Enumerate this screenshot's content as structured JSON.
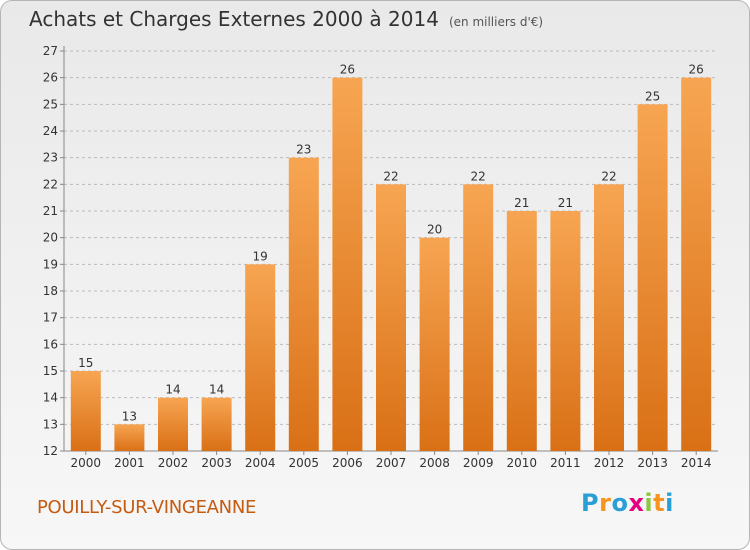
{
  "title": "Achats et Charges Externes 2000 à 2014",
  "subtitle": "(en milliers d'€)",
  "city": "POUILLY-SUR-VINGEANNE",
  "logo": {
    "letters": [
      "P",
      "r",
      "o",
      "x",
      "i",
      "t",
      "i"
    ],
    "colors": [
      "#2a9fd6",
      "#f7941d",
      "#2a9fd6",
      "#e5007e",
      "#8dc63f",
      "#f7941d",
      "#2a9fd6"
    ]
  },
  "colors": {
    "bar_top": "#f7a552",
    "bar_bottom": "#d97016",
    "grid": "#bbbbbb"
  },
  "chart_data": {
    "type": "bar",
    "title": "Achats et Charges Externes 2000 à 2014",
    "categories": [
      "2000",
      "2001",
      "2002",
      "2003",
      "2004",
      "2005",
      "2006",
      "2007",
      "2008",
      "2009",
      "2010",
      "2011",
      "2012",
      "2013",
      "2014"
    ],
    "values": [
      15,
      13,
      14,
      14,
      19,
      23,
      26,
      22,
      20,
      22,
      21,
      21,
      22,
      25,
      26
    ],
    "ylim": [
      12,
      27
    ],
    "yticks": [
      12,
      13,
      14,
      15,
      16,
      17,
      18,
      19,
      20,
      21,
      22,
      23,
      24,
      25,
      26,
      27
    ],
    "grid": true,
    "legend": "none"
  }
}
